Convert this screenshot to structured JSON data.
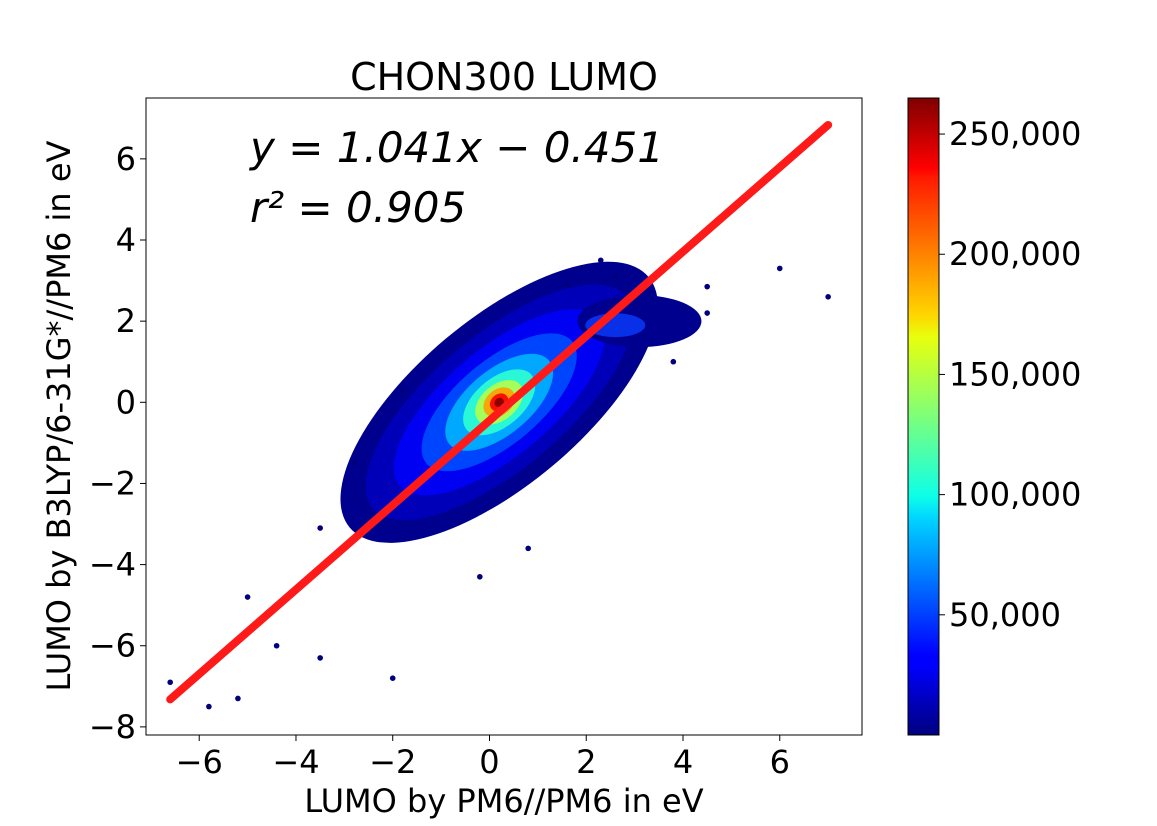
{
  "chart_data": {
    "type": "scatter",
    "title": "CHON300 LUMO",
    "xlabel": "LUMO by PM6//PM6 in eV",
    "ylabel": "LUMO by B3LYP/6-31G*//PM6 in eV",
    "xlim": [
      -7.1,
      7.7
    ],
    "ylim": [
      -8.2,
      7.5
    ],
    "xticks": [
      -6,
      -4,
      -2,
      0,
      2,
      4,
      6
    ],
    "yticks": [
      -8,
      -6,
      -4,
      -2,
      0,
      2,
      4,
      6
    ],
    "x_tick_labels": [
      "−6",
      "−4",
      "−2",
      "0",
      "2",
      "4",
      "6"
    ],
    "y_tick_labels": [
      "−8",
      "−6",
      "−4",
      "−2",
      "0",
      "2",
      "4",
      "6"
    ],
    "annotation_line1": "y = 1.041x − 0.451",
    "annotation_line2": "r² = 0.905",
    "fit": {
      "slope": 1.041,
      "intercept": -0.451,
      "x_range": [
        -6.6,
        7.0
      ],
      "r2": 0.905,
      "color": "#ff1a1a"
    },
    "colorbar": {
      "colormap": "jet",
      "range": [
        0,
        265000
      ],
      "ticks": [
        50000,
        100000,
        150000,
        200000,
        250000
      ],
      "tick_labels": [
        "50,000",
        "100,000",
        "150,000",
        "200,000",
        "250,000"
      ]
    },
    "density": {
      "description_free": true,
      "core_center": [
        0.2,
        0.0
      ],
      "peak_count": 265000
    },
    "outliers": [
      {
        "x": 6.0,
        "y": 3.3
      },
      {
        "x": 7.0,
        "y": 2.6
      },
      {
        "x": 4.5,
        "y": 2.85
      },
      {
        "x": -5.8,
        "y": -7.5
      },
      {
        "x": -5.2,
        "y": -7.3
      },
      {
        "x": -6.6,
        "y": -6.9
      },
      {
        "x": -2.0,
        "y": -6.8
      },
      {
        "x": -3.5,
        "y": -6.3
      },
      {
        "x": -5.0,
        "y": -4.8
      },
      {
        "x": 0.8,
        "y": -3.6
      },
      {
        "x": -0.2,
        "y": -4.3
      },
      {
        "x": -1.8,
        "y": 0.3
      },
      {
        "x": -2.8,
        "y": -1.5
      },
      {
        "x": -3.5,
        "y": -3.1
      },
      {
        "x": 2.3,
        "y": 3.5
      },
      {
        "x": 2.6,
        "y": 3.1
      },
      {
        "x": 3.8,
        "y": 1.0
      },
      {
        "x": 4.5,
        "y": 2.2
      },
      {
        "x": -4.4,
        "y": -6.0
      },
      {
        "x": 1.6,
        "y": 2.9
      }
    ]
  }
}
